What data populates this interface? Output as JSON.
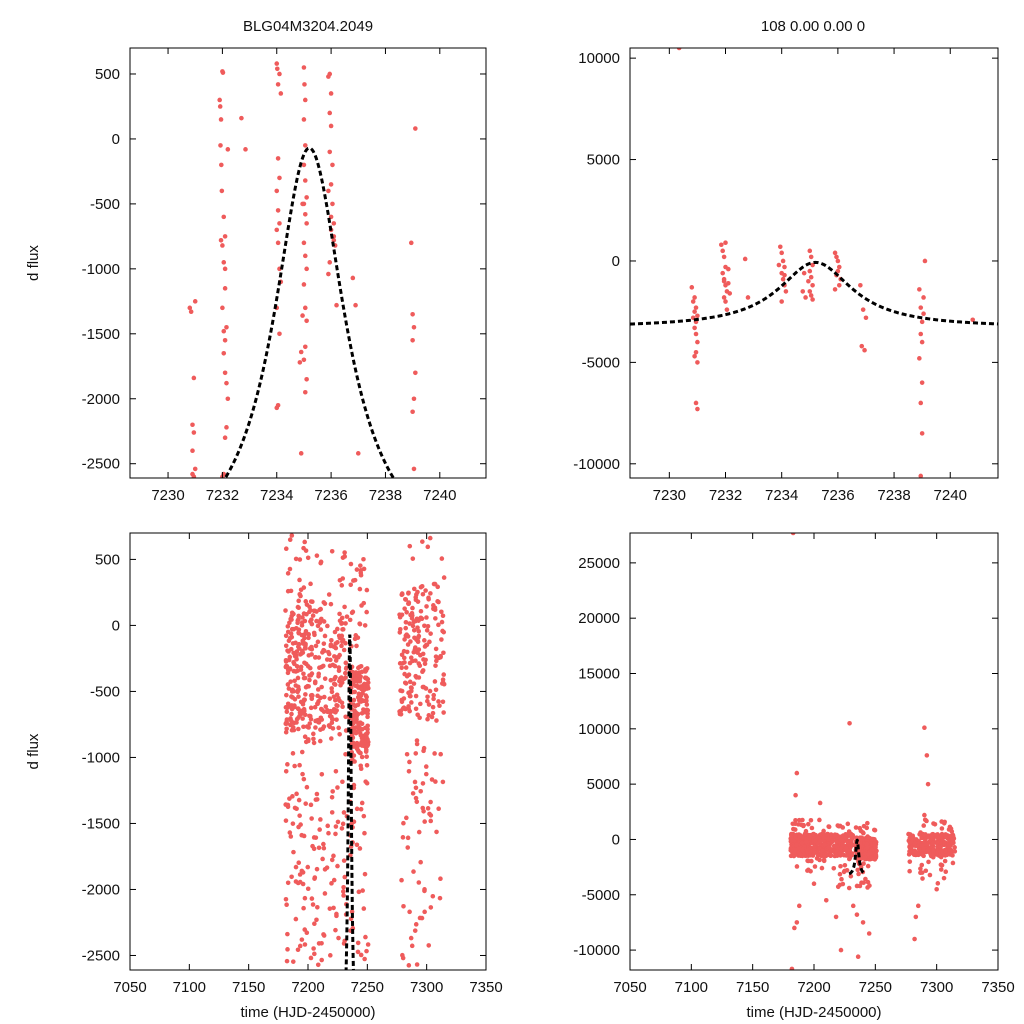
{
  "figure": {
    "title_left": "BLG04M3204.2049",
    "title_right": "108  0.00  0.00  0"
  },
  "colors": {
    "points": "#ef5b5b",
    "model": "#000000",
    "frame": "#000000"
  },
  "chart_data": [
    {
      "type": "scatter",
      "name": "top-left",
      "title": "BLG04M3204.2049",
      "xlabel": "",
      "ylabel": "d flux",
      "xlim": [
        7228.6,
        7241.7
      ],
      "ylim": [
        -2610,
        700
      ],
      "xticks": [
        7230,
        7232,
        7234,
        7236,
        7238,
        7240
      ],
      "yticks": [
        -2500,
        -2000,
        -1500,
        -1000,
        -500,
        0,
        500
      ],
      "model": {
        "t0": 7235.2,
        "peak": -70,
        "base": -3290,
        "tE": 1.6,
        "tmin": 7228.6,
        "tmax": 7241.7
      },
      "points": [
        [
          7230.8,
          -1300
        ],
        [
          7230.85,
          -1330
        ],
        [
          7230.9,
          -2200
        ],
        [
          7230.95,
          -2260
        ],
        [
          7231.0,
          -1250
        ],
        [
          7230.95,
          -1840
        ],
        [
          7230.9,
          -2400
        ],
        [
          7231.0,
          -2540
        ],
        [
          7230.95,
          -2600
        ],
        [
          7230.9,
          -2580
        ],
        [
          7231.9,
          300
        ],
        [
          7231.92,
          250
        ],
        [
          7231.95,
          150
        ],
        [
          7231.93,
          -50
        ],
        [
          7231.96,
          -200
        ],
        [
          7231.98,
          -400
        ],
        [
          7232.0,
          520
        ],
        [
          7232.02,
          510
        ],
        [
          7232.05,
          -600
        ],
        [
          7232.1,
          -750
        ],
        [
          7231.95,
          -780
        ],
        [
          7232.0,
          -820
        ],
        [
          7232.05,
          -950
        ],
        [
          7232.1,
          -1150
        ],
        [
          7232.0,
          -1300
        ],
        [
          7232.05,
          -1480
        ],
        [
          7232.1,
          -1550
        ],
        [
          7232.05,
          -1650
        ],
        [
          7232.1,
          -1800
        ],
        [
          7232.15,
          -1880
        ],
        [
          7232.2,
          -2000
        ],
        [
          7232.15,
          -2220
        ],
        [
          7232.1,
          -2300
        ],
        [
          7232.05,
          -2580
        ],
        [
          7232.0,
          -2600
        ],
        [
          7232.15,
          -1450
        ],
        [
          7232.1,
          -1000
        ],
        [
          7232.2,
          -80
        ],
        [
          7232.7,
          160
        ],
        [
          7232.85,
          -80
        ],
        [
          7234.0,
          580
        ],
        [
          7234.02,
          540
        ],
        [
          7234.05,
          420
        ],
        [
          7234.1,
          500
        ],
        [
          7234.15,
          350
        ],
        [
          7234.05,
          -150
        ],
        [
          7234.1,
          -300
        ],
        [
          7234.0,
          -400
        ],
        [
          7234.05,
          -550
        ],
        [
          7234.1,
          -650
        ],
        [
          7234.0,
          -700
        ],
        [
          7234.05,
          -800
        ],
        [
          7234.1,
          -1000
        ],
        [
          7234.15,
          -1100
        ],
        [
          7234.0,
          -1300
        ],
        [
          7234.1,
          -1500
        ],
        [
          7234.05,
          -2050
        ],
        [
          7234.0,
          -2070
        ],
        [
          7234.9,
          -2420
        ],
        [
          7234.95,
          -500
        ],
        [
          7235.0,
          550
        ],
        [
          7235.02,
          420
        ],
        [
          7235.05,
          300
        ],
        [
          7235.0,
          150
        ],
        [
          7235.05,
          -50
        ],
        [
          7235.0,
          -200
        ],
        [
          7235.05,
          -320
        ],
        [
          7235.1,
          -450
        ],
        [
          7235.0,
          -500
        ],
        [
          7235.05,
          -580
        ],
        [
          7235.1,
          -650
        ],
        [
          7235.0,
          -800
        ],
        [
          7235.05,
          -900
        ],
        [
          7235.1,
          -1000
        ],
        [
          7235.0,
          -1120
        ],
        [
          7235.05,
          -1300
        ],
        [
          7235.1,
          -1400
        ],
        [
          7235.05,
          -1600
        ],
        [
          7235.0,
          -1700
        ],
        [
          7235.1,
          -1850
        ],
        [
          7235.05,
          -1950
        ],
        [
          7234.85,
          -1720
        ],
        [
          7234.9,
          -1640
        ],
        [
          7234.95,
          -1360
        ],
        [
          7235.9,
          480
        ],
        [
          7235.95,
          500
        ],
        [
          7236.0,
          350
        ],
        [
          7235.95,
          200
        ],
        [
          7236.0,
          100
        ],
        [
          7235.95,
          -100
        ],
        [
          7236.05,
          -200
        ],
        [
          7236.0,
          -350
        ],
        [
          7235.9,
          -400
        ],
        [
          7236.05,
          -500
        ],
        [
          7236.0,
          -600
        ],
        [
          7236.1,
          -650
        ],
        [
          7236.0,
          -700
        ],
        [
          7236.1,
          -780
        ],
        [
          7236.15,
          -820
        ],
        [
          7236.2,
          -1280
        ],
        [
          7236.1,
          -750
        ],
        [
          7235.95,
          -950
        ],
        [
          7235.9,
          -1040
        ],
        [
          7236.8,
          -1070
        ],
        [
          7236.9,
          -1280
        ],
        [
          7237.0,
          -2420
        ],
        [
          7238.95,
          -800
        ],
        [
          7239.0,
          -1350
        ],
        [
          7239.05,
          -1450
        ],
        [
          7239.0,
          -1550
        ],
        [
          7239.05,
          -2000
        ],
        [
          7239.0,
          -2100
        ],
        [
          7239.1,
          -1800
        ],
        [
          7239.05,
          -2540
        ],
        [
          7239.1,
          80
        ]
      ]
    },
    {
      "type": "scatter",
      "name": "top-right",
      "title": "108  0.00  0.00  0",
      "xlabel": "",
      "ylabel": "",
      "xlim": [
        7228.6,
        7241.7
      ],
      "ylim": [
        -10700,
        10500
      ],
      "xticks": [
        7230,
        7232,
        7234,
        7236,
        7238,
        7240
      ],
      "yticks": [
        -10000,
        -5000,
        0,
        5000,
        10000
      ],
      "model": {
        "t0": 7235.2,
        "peak": -70,
        "base": -3290,
        "tE": 1.6,
        "tmin": 7228.6,
        "tmax": 7241.7
      },
      "points": [
        [
          7230.8,
          -1300
        ],
        [
          7230.85,
          -2000
        ],
        [
          7230.9,
          -2500
        ],
        [
          7230.95,
          -3000
        ],
        [
          7230.9,
          -3300
        ],
        [
          7230.95,
          -3600
        ],
        [
          7231.0,
          -4000
        ],
        [
          7230.95,
          -4500
        ],
        [
          7231.0,
          -5000
        ],
        [
          7230.9,
          -4700
        ],
        [
          7230.95,
          -7000
        ],
        [
          7231.0,
          -7300
        ],
        [
          7230.85,
          -2800
        ],
        [
          7230.9,
          -1800
        ],
        [
          7230.95,
          -2300
        ],
        [
          7231.0,
          -2700
        ],
        [
          7231.85,
          800
        ],
        [
          7231.9,
          500
        ],
        [
          7231.95,
          200
        ],
        [
          7232.0,
          -300
        ],
        [
          7231.9,
          -600
        ],
        [
          7231.95,
          -900
        ],
        [
          7232.0,
          -1200
        ],
        [
          7232.05,
          -1500
        ],
        [
          7232.0,
          -2000
        ],
        [
          7232.05,
          -2400
        ],
        [
          7231.95,
          -1000
        ],
        [
          7232.1,
          -400
        ],
        [
          7232.0,
          900
        ],
        [
          7231.95,
          -1800
        ],
        [
          7232.1,
          -1100
        ],
        [
          7232.15,
          -1600
        ],
        [
          7232.7,
          100
        ],
        [
          7232.8,
          -1800
        ],
        [
          7233.95,
          700
        ],
        [
          7234.0,
          400
        ],
        [
          7234.05,
          0
        ],
        [
          7234.1,
          -300
        ],
        [
          7234.0,
          -600
        ],
        [
          7234.05,
          -900
        ],
        [
          7234.1,
          -1200
        ],
        [
          7234.0,
          -2000
        ],
        [
          7234.15,
          -1500
        ],
        [
          7234.1,
          -700
        ],
        [
          7233.9,
          -200
        ],
        [
          7234.75,
          -1500
        ],
        [
          7234.85,
          -1800
        ],
        [
          7234.8,
          -600
        ],
        [
          7235.0,
          500
        ],
        [
          7235.05,
          200
        ],
        [
          7235.1,
          -200
        ],
        [
          7235.0,
          -500
        ],
        [
          7235.05,
          -800
        ],
        [
          7235.1,
          -1200
        ],
        [
          7235.0,
          -1500
        ],
        [
          7235.05,
          -1700
        ],
        [
          7235.1,
          -1900
        ],
        [
          7234.95,
          -1000
        ],
        [
          7235.9,
          400
        ],
        [
          7235.95,
          200
        ],
        [
          7236.0,
          0
        ],
        [
          7236.05,
          -300
        ],
        [
          7236.0,
          -500
        ],
        [
          7235.95,
          -700
        ],
        [
          7236.1,
          -900
        ],
        [
          7236.05,
          -1200
        ],
        [
          7235.9,
          -1400
        ],
        [
          7236.8,
          -1200
        ],
        [
          7236.9,
          -2400
        ],
        [
          7236.85,
          -4200
        ],
        [
          7236.95,
          -4400
        ],
        [
          7237.0,
          -2800
        ],
        [
          7238.9,
          -1400
        ],
        [
          7238.95,
          -2300
        ],
        [
          7239.0,
          -3000
        ],
        [
          7238.95,
          -3600
        ],
        [
          7239.0,
          -4000
        ],
        [
          7238.9,
          -4800
        ],
        [
          7239.0,
          -6000
        ],
        [
          7238.95,
          -7000
        ],
        [
          7239.0,
          -8500
        ],
        [
          7238.95,
          -10600
        ],
        [
          7239.05,
          -2600
        ],
        [
          7239.1,
          0
        ],
        [
          7239.05,
          -1800
        ],
        [
          7240.8,
          -2900
        ],
        [
          7230.35,
          10500
        ]
      ]
    },
    {
      "type": "scatter",
      "name": "bottom-left",
      "title": "",
      "xlabel": "time (HJD-2450000)",
      "ylabel": "d flux",
      "xlim": [
        7050,
        7350
      ],
      "ylim": [
        -2610,
        700
      ],
      "xticks": [
        7050,
        7100,
        7150,
        7200,
        7250,
        7300,
        7350
      ],
      "yticks": [
        -2500,
        -2000,
        -1500,
        -1000,
        -500,
        0,
        500
      ],
      "model": {
        "t0": 7235.2,
        "peak": -70,
        "base": -3290,
        "tE": 1.6,
        "tmin": 7228.6,
        "tmax": 7241.7
      },
      "clusters": [
        {
          "x": [
            7181,
            7197
          ],
          "y": [
            -2600,
            690
          ],
          "n": 200,
          "core": [
            -800,
            100
          ],
          "core_frac": 0.55
        },
        {
          "x": [
            7197,
            7215
          ],
          "y": [
            -2600,
            650
          ],
          "n": 170,
          "core": [
            -900,
            200
          ],
          "core_frac": 0.6
        },
        {
          "x": [
            7216,
            7226
          ],
          "y": [
            -2600,
            600
          ],
          "n": 80,
          "core": [
            -800,
            0
          ],
          "core_frac": 0.5
        },
        {
          "x": [
            7226,
            7233
          ],
          "y": [
            -2600,
            580
          ],
          "n": 60,
          "core": [
            -700,
            100
          ],
          "core_frac": 0.5
        },
        {
          "x": [
            7235,
            7251
          ],
          "y": [
            -2600,
            600
          ],
          "n": 250,
          "core": [
            -1000,
            -300
          ],
          "core_frac": 0.65
        },
        {
          "x": [
            7277,
            7315
          ],
          "y": [
            -2600,
            690
          ],
          "n": 260,
          "core": [
            -700,
            300
          ],
          "core_frac": 0.6
        }
      ]
    },
    {
      "type": "scatter",
      "name": "bottom-right",
      "title": "",
      "xlabel": "time (HJD-2450000)",
      "ylabel": "",
      "xlim": [
        7050,
        7350
      ],
      "ylim": [
        -11800,
        27700
      ],
      "xticks": [
        7050,
        7100,
        7150,
        7200,
        7250,
        7300,
        7350
      ],
      "yticks": [
        -10000,
        -5000,
        0,
        5000,
        10000,
        15000,
        20000,
        25000
      ],
      "model": {
        "t0": 7235.2,
        "peak": -70,
        "base": -3290,
        "tE": 1.6,
        "tmin": 7228.6,
        "tmax": 7241.7
      },
      "clusters": [
        {
          "x": [
            7181,
            7197
          ],
          "y": [
            -3000,
            1800
          ],
          "n": 200,
          "core": [
            -1500,
            500
          ],
          "core_frac": 0.8
        },
        {
          "x": [
            7197,
            7215
          ],
          "y": [
            -3000,
            1800
          ],
          "n": 170,
          "core": [
            -1500,
            500
          ],
          "core_frac": 0.8
        },
        {
          "x": [
            7216,
            7232
          ],
          "y": [
            -4500,
            1500
          ],
          "n": 130,
          "core": [
            -1500,
            500
          ],
          "core_frac": 0.75
        },
        {
          "x": [
            7234,
            7251
          ],
          "y": [
            -4500,
            1500
          ],
          "n": 250,
          "core": [
            -1800,
            200
          ],
          "core_frac": 0.8
        },
        {
          "x": [
            7277,
            7315
          ],
          "y": [
            -4000,
            1800
          ],
          "n": 260,
          "core": [
            -1500,
            500
          ],
          "core_frac": 0.8
        }
      ],
      "outliers": [
        [
          7183,
          27700
        ],
        [
          7186,
          6000
        ],
        [
          7185,
          4000
        ],
        [
          7188,
          -6000
        ],
        [
          7186,
          -7500
        ],
        [
          7184,
          -8000
        ],
        [
          7182,
          -11700
        ],
        [
          7205,
          3300
        ],
        [
          7200,
          -4000
        ],
        [
          7210,
          -5500
        ],
        [
          7229,
          10500
        ],
        [
          7232,
          -6000
        ],
        [
          7235,
          -6800
        ],
        [
          7236,
          -10600
        ],
        [
          7240,
          -7500
        ],
        [
          7245,
          -8500
        ],
        [
          7222,
          -10000
        ],
        [
          7218,
          -7000
        ],
        [
          7290,
          10100
        ],
        [
          7292,
          7600
        ],
        [
          7293,
          5000
        ],
        [
          7290,
          2200
        ],
        [
          7285,
          -6000
        ],
        [
          7283,
          -7000
        ],
        [
          7282,
          -9000
        ],
        [
          7300,
          -4500
        ],
        [
          7306,
          -3500
        ]
      ]
    }
  ]
}
